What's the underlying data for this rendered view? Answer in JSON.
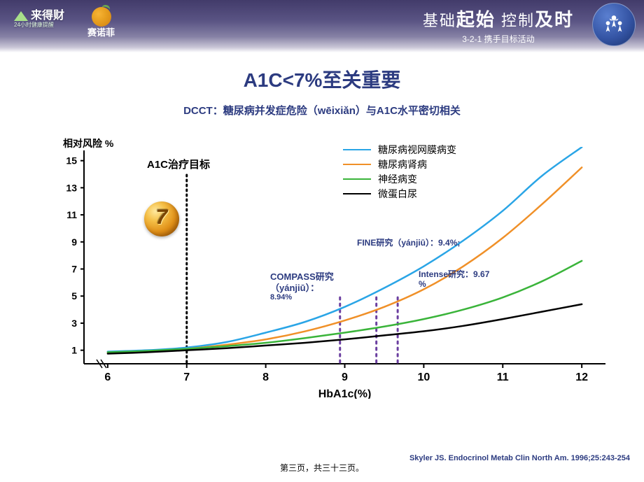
{
  "header": {
    "logo_left_main": "来得财",
    "logo_left_sub": "24小时健康提醒",
    "logo_mid": "赛诺菲",
    "slogan_parts": [
      "基础",
      "起始",
      " 控制",
      "及时"
    ],
    "sub_slogan": "3-2-1 携手目标活动"
  },
  "title": {
    "text": "A1C<7%至关重要",
    "color": "#2c3b80",
    "fontsize": 28
  },
  "subtitle": {
    "text": "DCCT：糖尿病并发症危险（wēixiǎn）与A1C水平密切相关",
    "color": "#2c3b80",
    "fontsize": 15
  },
  "chart": {
    "type": "line",
    "y_axis_title": "相对风险 %",
    "x_axis_title": "HbA1c(%)",
    "target_label": "A1C治疗目标",
    "target_label_color": "#000000",
    "xlim": [
      5.7,
      12.3
    ],
    "ylim": [
      0,
      15.5
    ],
    "x_ticks": [
      6,
      7,
      8,
      9,
      10,
      11,
      12
    ],
    "y_ticks": [
      1,
      3,
      5,
      7,
      9,
      11,
      13,
      15
    ],
    "axis_color": "#000000",
    "line_width": 2.5,
    "series": [
      {
        "name": "糖尿病视网膜病变",
        "color": "#2aa5e6",
        "points": [
          [
            6,
            0.9
          ],
          [
            6.5,
            1.0
          ],
          [
            7,
            1.2
          ],
          [
            7.5,
            1.6
          ],
          [
            8,
            2.3
          ],
          [
            8.5,
            3.1
          ],
          [
            9,
            4.2
          ],
          [
            9.5,
            5.6
          ],
          [
            10,
            7.2
          ],
          [
            10.5,
            9.1
          ],
          [
            11,
            11.3
          ],
          [
            11.5,
            13.9
          ],
          [
            12,
            16.0
          ]
        ]
      },
      {
        "name": "糖尿病肾病",
        "color": "#f09028",
        "points": [
          [
            6,
            0.8
          ],
          [
            6.5,
            0.9
          ],
          [
            7,
            1.1
          ],
          [
            7.5,
            1.4
          ],
          [
            8,
            1.8
          ],
          [
            8.5,
            2.4
          ],
          [
            9,
            3.2
          ],
          [
            9.5,
            4.2
          ],
          [
            10,
            5.5
          ],
          [
            10.5,
            7.2
          ],
          [
            11,
            9.3
          ],
          [
            11.5,
            11.8
          ],
          [
            12,
            14.5
          ]
        ]
      },
      {
        "name": "神经病变",
        "color": "#3ab43a",
        "points": [
          [
            6,
            0.85
          ],
          [
            6.5,
            0.95
          ],
          [
            7,
            1.1
          ],
          [
            7.5,
            1.3
          ],
          [
            8,
            1.55
          ],
          [
            8.5,
            1.9
          ],
          [
            9,
            2.3
          ],
          [
            9.5,
            2.75
          ],
          [
            10,
            3.3
          ],
          [
            10.5,
            4.0
          ],
          [
            11,
            4.9
          ],
          [
            11.5,
            6.1
          ],
          [
            12,
            7.6
          ]
        ]
      },
      {
        "name": "微蛋白尿",
        "color": "#000000",
        "points": [
          [
            6,
            0.75
          ],
          [
            6.5,
            0.85
          ],
          [
            7,
            1.0
          ],
          [
            7.5,
            1.15
          ],
          [
            8,
            1.35
          ],
          [
            8.5,
            1.55
          ],
          [
            9,
            1.8
          ],
          [
            9.5,
            2.1
          ],
          [
            10,
            2.4
          ],
          [
            10.5,
            2.8
          ],
          [
            11,
            3.3
          ],
          [
            11.5,
            3.85
          ],
          [
            12,
            4.4
          ]
        ]
      }
    ],
    "target_line": {
      "x": 7,
      "color": "#000000",
      "dash": "2,5",
      "width": 3
    },
    "study_markers": [
      {
        "x": 8.94,
        "color": "#6b3fa0"
      },
      {
        "x": 9.4,
        "color": "#6b3fa0"
      },
      {
        "x": 9.67,
        "color": "#6b3fa0"
      }
    ],
    "gold_ball_value": "7"
  },
  "annotations": {
    "compass": {
      "line1": "COMPASS研究",
      "line2": "（yánjiū）：",
      "line3": "8.94%",
      "color": "#2c3b80",
      "fontsize_main": 13,
      "fontsize_sub": 11
    },
    "fine": {
      "text": "FINE研究（yánjiū）：9.4%;",
      "color": "#2c3b80",
      "fontsize": 12
    },
    "intense": {
      "line1": "Intense研究：9.67",
      "line2": "%",
      "color": "#2c3b80",
      "fontsize": 12
    }
  },
  "footer": {
    "page": "第三页，共三十三页。",
    "citation": "Skyler JS. Endocrinol  Metab Clin  North  Am. 1996;25:243-254",
    "cite_color": "#2c3b80"
  }
}
